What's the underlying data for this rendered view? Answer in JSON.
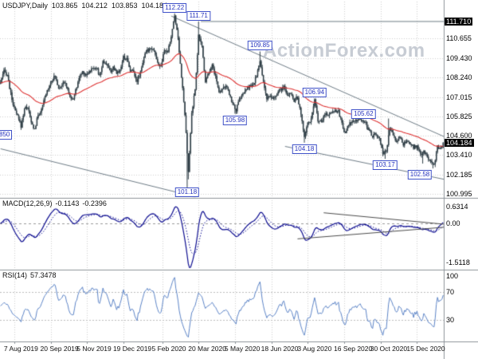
{
  "header": {
    "symbol_timeframe": "USDJPY,Daily",
    "open": "103.865",
    "high": "104.212",
    "low": "103.853",
    "close": "104.184"
  },
  "watermark": "ActionForex.com",
  "indicators": {
    "macd": {
      "label": "MACD(12,26,9)",
      "value_1": "-0.1143",
      "value_2": "-0.2396"
    },
    "rsi": {
      "label": "RSI(14)",
      "value": "57.3478"
    }
  },
  "left_partial_label": "850",
  "chart_data": {
    "type": "candlestick",
    "symbol": "USDJPY",
    "timeframe": "Daily",
    "title": "USDJPY,Daily 103.865 104.212 103.853 104.184",
    "price_axis": {
      "range": [
        100.85,
        112.55
      ],
      "labels": [
        {
          "text": "111.710",
          "value": 111.71,
          "highlight": true
        },
        {
          "text": "110.655",
          "value": 110.655
        },
        {
          "text": "109.430",
          "value": 109.43
        },
        {
          "text": "108.240",
          "value": 108.24
        },
        {
          "text": "107.015",
          "value": 107.015
        },
        {
          "text": "105.825",
          "value": 105.825
        },
        {
          "text": "104.600",
          "value": 104.6
        },
        {
          "text": "104.184",
          "value": 104.184,
          "highlight": true
        },
        {
          "text": "103.410",
          "value": 103.41
        },
        {
          "text": "102.185",
          "value": 102.185
        },
        {
          "text": "100.995",
          "value": 100.995
        }
      ]
    },
    "x_axis": {
      "bars_total": 390,
      "labels": [
        {
          "text": "7 Aug 2019",
          "bar": 12
        },
        {
          "text": "20 Sep 2019",
          "bar": 44
        },
        {
          "text": "5 Nov 2019",
          "bar": 76
        },
        {
          "text": "19 Dec 2019",
          "bar": 108
        },
        {
          "text": "5 Feb 2020",
          "bar": 142
        },
        {
          "text": "20 Mar 2020",
          "bar": 174
        },
        {
          "text": "5 May 2020",
          "bar": 206
        },
        {
          "text": "18 Jun 2020",
          "bar": 238
        },
        {
          "text": "3 Aug 2020",
          "bar": 270
        },
        {
          "text": "16 Sep 2020",
          "bar": 302
        },
        {
          "text": "30 Oct 2020",
          "bar": 334
        },
        {
          "text": "15 Dec 2020",
          "bar": 366
        }
      ]
    },
    "pivots": [
      {
        "text": "112.22",
        "bar": 153,
        "price": 112.22,
        "side": "above"
      },
      {
        "text": "111.71",
        "bar": 174,
        "price": 111.71,
        "side": "above"
      },
      {
        "text": "109.85",
        "bar": 228,
        "price": 109.85,
        "side": "above"
      },
      {
        "text": "106.94",
        "bar": 276,
        "price": 106.94,
        "side": "above"
      },
      {
        "text": "105.98",
        "bar": 206,
        "price": 105.98,
        "side": "below"
      },
      {
        "text": "105.62",
        "bar": 319,
        "price": 105.62,
        "side": "above"
      },
      {
        "text": "104.18",
        "bar": 267,
        "price": 104.18,
        "side": "below"
      },
      {
        "text": "103.17",
        "bar": 338,
        "price": 103.17,
        "side": "below"
      },
      {
        "text": "102.58",
        "bar": 380,
        "price": 102.58,
        "side": "below"
      },
      {
        "text": "101.18",
        "bar": 164,
        "price": 101.18,
        "side": "below"
      }
    ],
    "trendlines": [
      {
        "b1": 150,
        "p1": 112.05,
        "b2": 390,
        "p2": 104.55
      },
      {
        "b1": 0,
        "p1": 103.8,
        "b2": 172,
        "p2": 100.8
      },
      {
        "b1": 250,
        "p1": 103.95,
        "b2": 390,
        "p2": 101.9
      },
      {
        "b1": 176,
        "p1": 111.71,
        "b2": 390,
        "p2": 111.71
      }
    ],
    "price_samples_step": 3,
    "price_samples": [
      107.9,
      108.6,
      108.4,
      107.2,
      106.3,
      105.8,
      105.2,
      106.3,
      106.4,
      105.4,
      105.0,
      105.9,
      106.2,
      107.0,
      107.6,
      108.1,
      108.3,
      107.6,
      107.8,
      107.9,
      107.2,
      106.8,
      107.4,
      108.2,
      108.6,
      108.4,
      108.6,
      108.8,
      108.9,
      108.3,
      109.2,
      109.1,
      108.6,
      108.8,
      108.5,
      108.7,
      109.5,
      109.4,
      108.7,
      108.6,
      108.0,
      108.6,
      109.5,
      109.9,
      110.1,
      109.9,
      109.1,
      108.9,
      109.9,
      109.8,
      110.8,
      112.1,
      110.7,
      108.3,
      105.9,
      102.3,
      106.0,
      107.5,
      110.8,
      110.2,
      108.0,
      108.6,
      109.0,
      108.3,
      107.3,
      107.6,
      107.7,
      107.2,
      106.6,
      106.2,
      106.9,
      107.2,
      107.5,
      107.7,
      107.7,
      108.4,
      109.2,
      108.0,
      106.9,
      107.0,
      106.9,
      107.2,
      107.5,
      107.6,
      107.1,
      107.3,
      106.8,
      107.0,
      105.9,
      104.6,
      105.4,
      105.6,
      106.8,
      105.6,
      105.4,
      106.0,
      105.9,
      106.1,
      106.2,
      106.1,
      105.4,
      104.7,
      105.3,
      105.5,
      105.5,
      105.7,
      105.5,
      105.4,
      104.9,
      104.6,
      104.7,
      104.4,
      103.5,
      103.6,
      105.1,
      104.6,
      104.3,
      104.5,
      104.1,
      104.2,
      104.1,
      103.9,
      104.0,
      103.4,
      103.6,
      103.3,
      103.1,
      102.8,
      103.9,
      103.8,
      104.1
    ],
    "wick_overrides": [
      {
        "bar": 153,
        "high": 112.22
      },
      {
        "bar": 164,
        "low": 101.18
      },
      {
        "bar": 165,
        "low": 101.9
      },
      {
        "bar": 174,
        "high": 111.71
      },
      {
        "bar": 206,
        "low": 105.98
      },
      {
        "bar": 228,
        "high": 109.85
      },
      {
        "bar": 267,
        "low": 104.18
      },
      {
        "bar": 276,
        "high": 106.94
      },
      {
        "bar": 319,
        "high": 105.62
      },
      {
        "bar": 338,
        "low": 103.17
      },
      {
        "bar": 341,
        "high": 105.68
      },
      {
        "bar": 371,
        "low": 102.88
      },
      {
        "bar": 380,
        "low": 102.58
      },
      {
        "bar": 389,
        "open": 103.865,
        "high": 104.212,
        "low": 103.853,
        "close": 104.184
      }
    ],
    "macd_panel": {
      "range": [
        0.85,
        -1.72
      ],
      "axis_labels": [
        {
          "text": "0.6314",
          "value": 0.6314
        },
        {
          "text": "0.00",
          "value": 0
        },
        {
          "text": "-1.5118",
          "value": -1.5118
        }
      ],
      "trendlines": [
        {
          "b1": 284,
          "v1": 0.4,
          "b2": 390,
          "v2": -0.04
        },
        {
          "b1": 261,
          "v1": -0.6,
          "b2": 390,
          "v2": -0.155
        }
      ]
    },
    "rsi_panel": {
      "axis_labels": [
        {
          "text": "100",
          "value": 100
        },
        {
          "text": "70",
          "value": 70
        },
        {
          "text": "30",
          "value": 30
        }
      ],
      "levels": [
        70,
        30
      ]
    },
    "colors": {
      "candle": "#2e3d45",
      "ma": "#dd3030",
      "macd": "#0b0b8f",
      "rsi": "#5b83c6",
      "trendline": "#6d7b85",
      "grid": "#cfcfcf",
      "separator": "#8d9399",
      "pivot_blue": "#2431bd"
    }
  }
}
